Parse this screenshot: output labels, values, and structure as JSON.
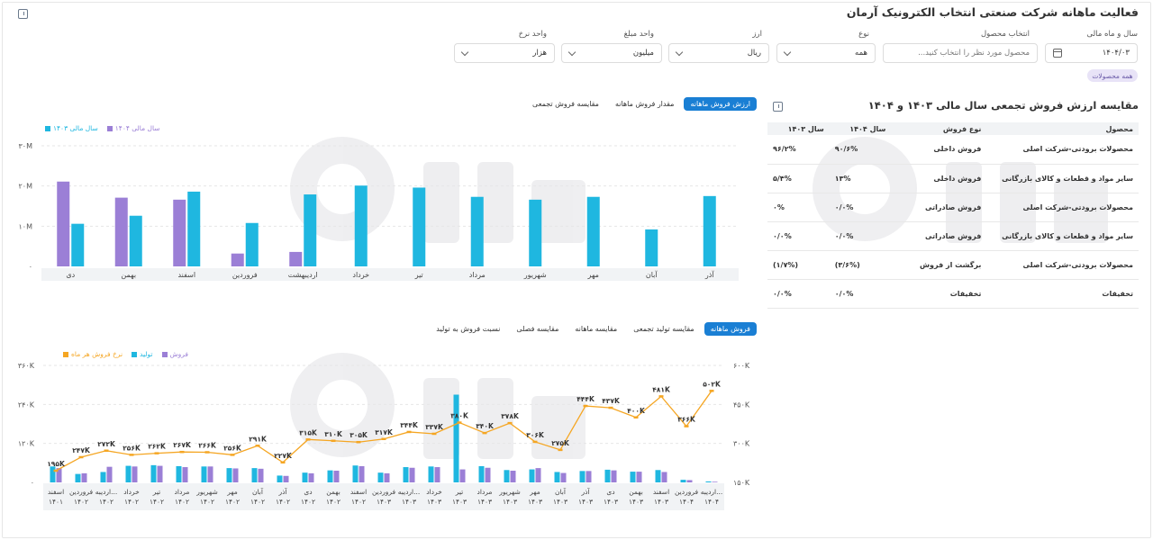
{
  "header": {
    "title": "فعالیت ماهانه شرکت صنعتی انتخاب الکترونیک آرمان"
  },
  "filters": {
    "fiscal": {
      "label": "سال و ماه مالی",
      "value": "۱۴۰۴/۰۳"
    },
    "product": {
      "label": "انتخاب محصول",
      "placeholder": "محصول مورد نظر را انتخاب کنید..."
    },
    "type": {
      "label": "نوع",
      "value": "همه"
    },
    "currency": {
      "label": "ارز",
      "value": "ریال"
    },
    "amount_unit": {
      "label": "واحد مبلغ",
      "value": "میلیون"
    },
    "rate_unit": {
      "label": "واحد نرخ",
      "value": "هزار"
    },
    "chip": "همه محصولات"
  },
  "top_chart": {
    "tabs": [
      "ارزش فروش ماهانه",
      "مقدار فروش ماهانه",
      "مقایسه فروش تجمعی"
    ],
    "active_tab": 0,
    "legend": [
      {
        "label": "سال مالی ۱۴۰۳",
        "color": "#1fb7e0"
      },
      {
        "label": "سال مالی ۱۴۰۴",
        "color": "#9b7fd6"
      }
    ]
  },
  "table": {
    "title": "مقایسه ارزش فروش تجمعی سال مالی ۱۴۰۳ و ۱۴۰۴",
    "headers": [
      "محصول",
      "نوع فروش",
      "سال ۱۴۰۴",
      "سال ۱۴۰۳"
    ],
    "rows": [
      [
        "محصولات برودتی-شرکت اصلی",
        "فروش داخلی",
        "۹۰/۶%",
        "۹۶/۲%"
      ],
      [
        "سایر مواد و قطعات و کالای بازرگانی",
        "فروش داخلی",
        "۱۳%",
        "۵/۴%"
      ],
      [
        "محصولات برودتی-شرکت اصلی",
        "فروش صادراتی",
        "۰/۰%",
        "۰%"
      ],
      [
        "سایر مواد و قطعات و کالای بازرگانی",
        "فروش صادراتی",
        "۰/۰%",
        "۰/۰%"
      ],
      [
        "محصولات برودتی-شرکت اصلی",
        "برگشت از فروش",
        "(۳/۶%)",
        "(۱/۷%)"
      ],
      [
        "تخفیفات",
        "تخفیفات",
        "۰/۰%",
        "۰/۰%"
      ]
    ]
  },
  "bottom_chart": {
    "tabs": [
      "فروش ماهانه",
      "مقایسه تولید تجمعی",
      "مقایسه ماهانه",
      "مقایسه فصلی",
      "نسبت فروش به تولید"
    ],
    "active_tab": 0,
    "legend": [
      {
        "label": "فروش",
        "color": "#9b7fd6"
      },
      {
        "label": "تولید",
        "color": "#1fb7e0"
      },
      {
        "label": "نرخ فروش هر ماه",
        "color": "#f5a623"
      }
    ]
  },
  "chart_data": [
    {
      "type": "bar",
      "categories": [
        "آذر",
        "آبان",
        "مهر",
        "شهریور",
        "مرداد",
        "تیر",
        "خرداد",
        "اردیبهشت",
        "فروردین",
        "اسفند",
        "بهمن",
        "دی"
      ],
      "series": [
        {
          "name": "سال مالی ۱۴۰۳",
          "color": "#1fb7e0",
          "values": [
            17.5,
            9.2,
            17.3,
            16.6,
            17.3,
            19.6,
            20.1,
            17.9,
            10.8,
            18.6,
            12.6,
            10.6
          ]
        },
        {
          "name": "سال مالی ۱۴۰۴",
          "color": "#9b7fd6",
          "values": [
            null,
            null,
            null,
            null,
            null,
            null,
            null,
            3.6,
            3.2,
            16.6,
            17.1,
            21.1
          ]
        }
      ],
      "yticks": [
        "۳۰M",
        "۲۰M",
        "۱۰M",
        "۰"
      ],
      "ylim": [
        0,
        30
      ]
    },
    {
      "type": "bar+line",
      "categories": [
        [
          "اسفند",
          "۱۴۰۱"
        ],
        [
          "فروردین",
          "۱۴۰۲"
        ],
        [
          "اردیبه...",
          "۱۴۰۲"
        ],
        [
          "خرداد",
          "۱۴۰۲"
        ],
        [
          "تیر",
          "۱۴۰۲"
        ],
        [
          "مرداد",
          "۱۴۰۲"
        ],
        [
          "شهریور",
          "۱۴۰۲"
        ],
        [
          "مهر",
          "۱۴۰۲"
        ],
        [
          "آبان",
          "۱۴۰۲"
        ],
        [
          "آذر",
          "۱۴۰۲"
        ],
        [
          "دی",
          "۱۴۰۲"
        ],
        [
          "بهمن",
          "۱۴۰۲"
        ],
        [
          "اسفند",
          "۱۴۰۲"
        ],
        [
          "فروردین",
          "۱۴۰۳"
        ],
        [
          "اردیبه...",
          "۱۴۰۳"
        ],
        [
          "خرداد",
          "۱۴۰۳"
        ],
        [
          "تیر",
          "۱۴۰۳"
        ],
        [
          "مرداد",
          "۱۴۰۳"
        ],
        [
          "شهریور",
          "۱۴۰۳"
        ],
        [
          "مهر",
          "۱۴۰۳"
        ],
        [
          "آبان",
          "۱۴۰۳"
        ],
        [
          "آذر",
          "۱۴۰۳"
        ],
        [
          "دی",
          "۱۴۰۳"
        ],
        [
          "بهمن",
          "۱۴۰۳"
        ],
        [
          "اسفند",
          "۱۴۰۳"
        ],
        [
          "فروردین",
          "۱۴۰۴"
        ],
        [
          "اردیبه...",
          "۱۴۰۴"
        ]
      ],
      "series": [
        {
          "name": "تولید",
          "color": "#1fb7e0",
          "axis": "left",
          "values": [
            49,
            26,
            32,
            51,
            53,
            50,
            49,
            44,
            44,
            21,
            30,
            37,
            52,
            30,
            47,
            49,
            270,
            50,
            38,
            40,
            32,
            35,
            39,
            33,
            38,
            8,
            3
          ]
        },
        {
          "name": "فروش",
          "color": "#9b7fd6",
          "axis": "left",
          "values": [
            44,
            28,
            48,
            49,
            51,
            47,
            49,
            43,
            42,
            20,
            28,
            36,
            50,
            28,
            45,
            47,
            40,
            45,
            36,
            44,
            29,
            35,
            37,
            33,
            32,
            7,
            2
          ]
        },
        {
          "name": "نرخ فروش هر ماه",
          "color": "#f5a623",
          "axis": "right",
          "values": [
            195,
            247,
            272,
            256,
            262,
            267,
            266,
            256,
            291,
            227,
            315,
            310,
            305,
            317,
            344,
            337,
            380,
            340,
            378,
            306,
            275,
            444,
            437,
            400,
            481,
            366,
            502
          ],
          "labels": [
            "۱۹۵K",
            "۲۴۷K",
            "۲۷۲K",
            "۲۵۶K",
            "۲۶۲K",
            "۲۶۷K",
            "۲۶۶K",
            "۲۵۶K",
            "۲۹۱K",
            "۲۲۷K",
            "۳۱۵K",
            "۳۱۰K",
            "۳۰۵K",
            "۳۱۷K",
            "۳۴۴K",
            "۳۳۷K",
            "۳۸۰K",
            "۳۴۰K",
            "۳۷۸K",
            "۳۰۶K",
            "۲۷۵K",
            "۴۴۴K",
            "۴۳۷K",
            "۴۰۰K",
            "۴۸۱K",
            "۳۶۶K",
            "۵۰۲K"
          ]
        }
      ],
      "yticks_left": [
        "۳۶۰K",
        "۲۴۰K",
        "۱۲۰K",
        "۰"
      ],
      "yticks_right": [
        "۶۰۰K",
        "۴۵۰K",
        "۳۰۰K",
        "۱۵۰K"
      ],
      "ylim_left": [
        0,
        360
      ],
      "ylim_right": [
        150,
        600
      ]
    }
  ]
}
